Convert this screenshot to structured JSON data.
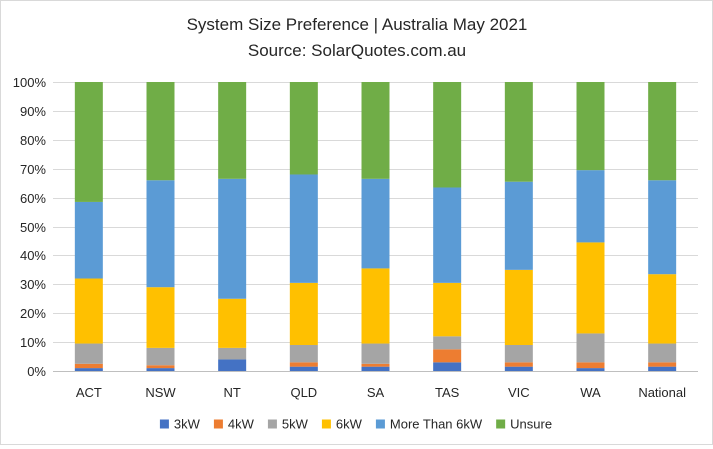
{
  "chart_data": {
    "type": "bar",
    "stacked": true,
    "percent": true,
    "title": "System Size Preference  | Australia May 2021",
    "subtitle": "Source: SolarQuotes.com.au",
    "xlabel": "",
    "ylabel": "",
    "ylim": [
      0,
      100
    ],
    "yticks": [
      "0%",
      "10%",
      "20%",
      "30%",
      "40%",
      "50%",
      "60%",
      "70%",
      "80%",
      "90%",
      "100%"
    ],
    "grid": true,
    "legend_position": "bottom",
    "categories": [
      "ACT",
      "NSW",
      "NT",
      "QLD",
      "SA",
      "TAS",
      "VIC",
      "WA",
      "National"
    ],
    "series": [
      {
        "name": "3kW",
        "color": "#4472C4",
        "values": [
          1,
          1,
          4,
          1.5,
          1.5,
          3,
          1.5,
          1,
          1.5
        ]
      },
      {
        "name": "4kW",
        "color": "#ED7D31",
        "values": [
          1.5,
          1,
          0,
          1.5,
          1,
          4.5,
          1.5,
          2,
          1.5
        ]
      },
      {
        "name": "5kW",
        "color": "#A5A5A5",
        "values": [
          7,
          6,
          4,
          6,
          7,
          4.5,
          6,
          10,
          6.5
        ]
      },
      {
        "name": "6kW",
        "color": "#FFC000",
        "values": [
          22.5,
          21,
          17,
          21.5,
          26,
          18.5,
          26,
          31.5,
          24
        ]
      },
      {
        "name": "More Than 6kW",
        "color": "#5B9BD5",
        "values": [
          26.5,
          37,
          41.5,
          37.5,
          31,
          33,
          30.5,
          25,
          32.5
        ]
      },
      {
        "name": "Unsure",
        "color": "#70AD47",
        "values": [
          41.5,
          34,
          33.5,
          32,
          33.5,
          36.5,
          34.5,
          30.5,
          34
        ]
      }
    ]
  }
}
